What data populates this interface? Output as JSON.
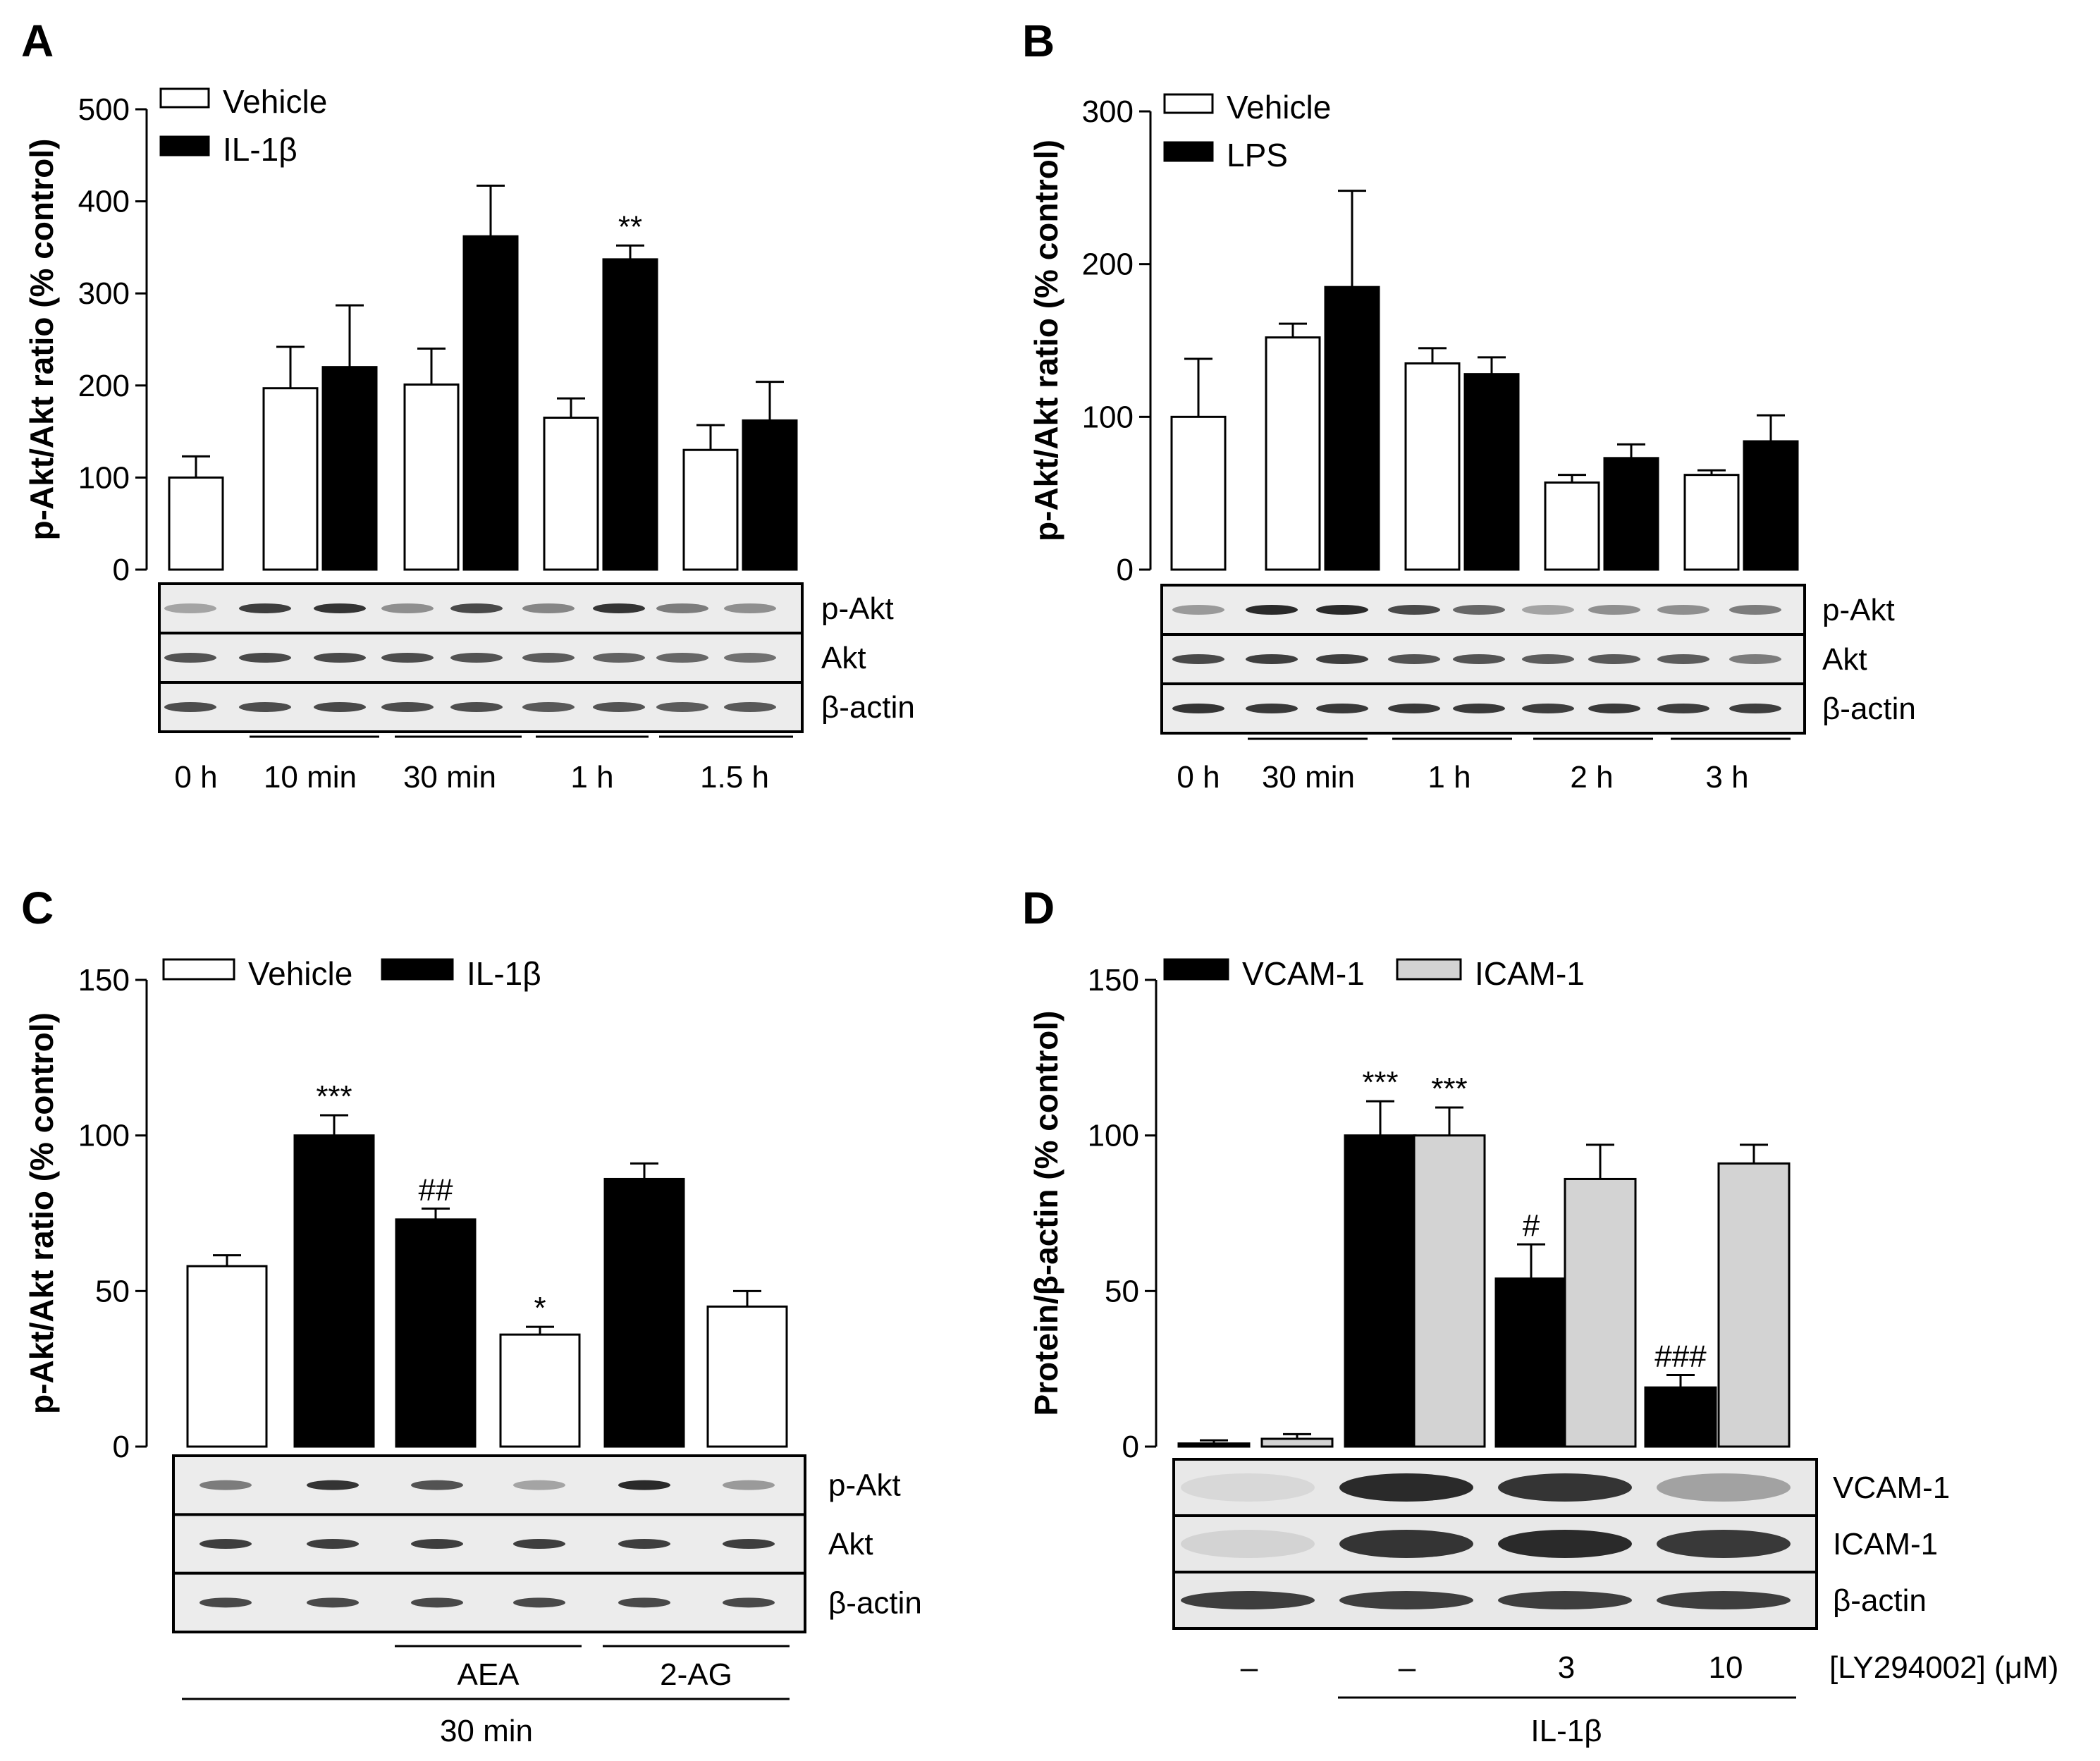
{
  "figure": {
    "colors": {
      "vehicle": "#ffffff",
      "treatment": "#000000",
      "icam": "#d3d3d3",
      "blot_bg": "#e6e6e6",
      "band": "#202020"
    }
  },
  "chart_data": [
    {
      "panel": "A",
      "type": "bar",
      "ylabel": "p-Akt/Akt ratio (% control)",
      "ylim": [
        0,
        500
      ],
      "yticks": [
        "0",
        "100",
        "200",
        "300",
        "400",
        "500"
      ],
      "legend": [
        "Vehicle",
        "IL-1β"
      ],
      "bars": [
        {
          "series": "Vehicle",
          "value": 100,
          "error": 23,
          "annotation": ""
        },
        {
          "series": "Vehicle",
          "value": 197,
          "error": 45,
          "annotation": ""
        },
        {
          "series": "IL-1β",
          "value": 220,
          "error": 67,
          "annotation": ""
        },
        {
          "series": "Vehicle",
          "value": 201,
          "error": 39,
          "annotation": ""
        },
        {
          "series": "IL-1β",
          "value": 362,
          "error": 55,
          "annotation": ""
        },
        {
          "series": "Vehicle",
          "value": 165,
          "error": 21,
          "annotation": ""
        },
        {
          "series": "IL-1β",
          "value": 337,
          "error": 15,
          "annotation": "**"
        },
        {
          "series": "Vehicle",
          "value": 130,
          "error": 27,
          "annotation": ""
        },
        {
          "series": "IL-1β",
          "value": 162,
          "error": 42,
          "annotation": ""
        }
      ],
      "blot_labels": [
        "p-Akt",
        "Akt",
        "β-actin"
      ],
      "xcategories": [
        "0 h",
        "10 min",
        "30 min",
        "1 h",
        "1.5 h"
      ]
    },
    {
      "panel": "B",
      "type": "bar",
      "ylabel": "p-Akt/Akt ratio (% control)",
      "ylim": [
        0,
        300
      ],
      "yticks": [
        "0",
        "100",
        "200",
        "300"
      ],
      "legend": [
        "Vehicle",
        "LPS"
      ],
      "bars": [
        {
          "series": "Vehicle",
          "value": 100,
          "error": 38,
          "annotation": ""
        },
        {
          "series": "Vehicle",
          "value": 152,
          "error": 9,
          "annotation": ""
        },
        {
          "series": "LPS",
          "value": 185,
          "error": 63,
          "annotation": ""
        },
        {
          "series": "Vehicle",
          "value": 135,
          "error": 10,
          "annotation": ""
        },
        {
          "series": "LPS",
          "value": 128,
          "error": 11,
          "annotation": ""
        },
        {
          "series": "Vehicle",
          "value": 57,
          "error": 5,
          "annotation": ""
        },
        {
          "series": "LPS",
          "value": 73,
          "error": 9,
          "annotation": ""
        },
        {
          "series": "Vehicle",
          "value": 62,
          "error": 3,
          "annotation": ""
        },
        {
          "series": "LPS",
          "value": 84,
          "error": 17,
          "annotation": ""
        }
      ],
      "blot_labels": [
        "p-Akt",
        "Akt",
        "β-actin"
      ],
      "xcategories": [
        "0 h",
        "30 min",
        "1 h",
        "2 h",
        "3 h"
      ]
    },
    {
      "panel": "C",
      "type": "bar",
      "ylabel": "p-Akt/Akt ratio (% control)",
      "ylim": [
        0,
        150
      ],
      "yticks": [
        "0",
        "50",
        "100",
        "150"
      ],
      "legend": [
        "Vehicle",
        "IL-1β"
      ],
      "bars": [
        {
          "series": "Vehicle",
          "value": 58,
          "error": 3.5,
          "annotation": ""
        },
        {
          "series": "IL-1β",
          "value": 100,
          "error": 6.5,
          "annotation": "***"
        },
        {
          "series": "IL-1β",
          "value": 73,
          "error": 3.5,
          "annotation": "##"
        },
        {
          "series": "Vehicle",
          "value": 36,
          "error": 2.5,
          "annotation": "*"
        },
        {
          "series": "IL-1β",
          "value": 86,
          "error": 5,
          "annotation": ""
        },
        {
          "series": "Vehicle",
          "value": 45,
          "error": 5,
          "annotation": ""
        }
      ],
      "blot_labels": [
        "p-Akt",
        "Akt",
        "β-actin"
      ],
      "group_labels": [
        "AEA",
        "2-AG"
      ],
      "bottom_label": "30 min"
    },
    {
      "panel": "D",
      "type": "bar",
      "ylabel": "Protein/β-actin (% control)",
      "ylim": [
        0,
        150
      ],
      "yticks": [
        "0",
        "50",
        "100",
        "150"
      ],
      "legend": [
        "VCAM-1",
        "ICAM-1"
      ],
      "bars": [
        {
          "series": "VCAM-1",
          "value": 1,
          "error": 1,
          "annotation": ""
        },
        {
          "series": "ICAM-1",
          "value": 2.5,
          "error": 1.5,
          "annotation": ""
        },
        {
          "series": "VCAM-1",
          "value": 100,
          "error": 11,
          "annotation": "***"
        },
        {
          "series": "ICAM-1",
          "value": 100,
          "error": 9,
          "annotation": "***"
        },
        {
          "series": "VCAM-1",
          "value": 54,
          "error": 11,
          "annotation": "#"
        },
        {
          "series": "ICAM-1",
          "value": 86,
          "error": 11,
          "annotation": ""
        },
        {
          "series": "VCAM-1",
          "value": 19,
          "error": 4,
          "annotation": "###"
        },
        {
          "series": "ICAM-1",
          "value": 91,
          "error": 6,
          "annotation": ""
        }
      ],
      "blot_labels": [
        "VCAM-1",
        "ICAM-1",
        "β-actin"
      ],
      "dose_values": [
        "–",
        "–",
        "3",
        "10"
      ],
      "dose_label": "[LY294002] (μM)",
      "bottom_label": "IL-1β"
    }
  ]
}
